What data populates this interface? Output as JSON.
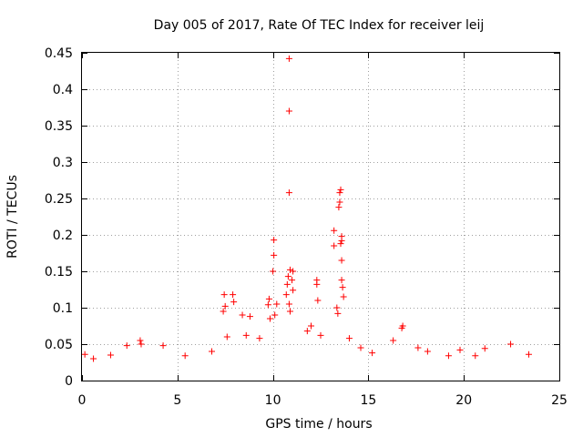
{
  "chart_data": {
    "type": "scatter",
    "title": "Day 005 of 2017, Rate Of TEC Index for receiver leij",
    "xlabel": "GPS time / hours",
    "ylabel": "ROTI / TECUs",
    "xlim": [
      0,
      25
    ],
    "ylim": [
      0,
      0.45
    ],
    "xticks": [
      0,
      5,
      10,
      15,
      20,
      25
    ],
    "xtick_labels": [
      "0",
      "5",
      "10",
      "15",
      "20",
      "25"
    ],
    "yticks": [
      0,
      0.05,
      0.1,
      0.15,
      0.2,
      0.25,
      0.3,
      0.35,
      0.4,
      0.45
    ],
    "ytick_labels": [
      "0",
      "0.05",
      "0.1",
      "0.15",
      "0.2",
      "0.25",
      "0.3",
      "0.35",
      "0.4",
      "0.45"
    ],
    "grid": true,
    "marker": "+",
    "color": "#ff0000",
    "series": [
      {
        "name": "ROTI",
        "points": [
          [
            10.85,
            0.442
          ],
          [
            10.85,
            0.37
          ],
          [
            10.85,
            0.258
          ],
          [
            13.55,
            0.262
          ],
          [
            13.5,
            0.258
          ],
          [
            13.5,
            0.245
          ],
          [
            13.45,
            0.238
          ],
          [
            13.2,
            0.206
          ],
          [
            13.6,
            0.198
          ],
          [
            13.6,
            0.192
          ],
          [
            13.55,
            0.188
          ],
          [
            13.2,
            0.185
          ],
          [
            10.05,
            0.193
          ],
          [
            10.05,
            0.172
          ],
          [
            13.6,
            0.165
          ],
          [
            10.0,
            0.15
          ],
          [
            10.9,
            0.152
          ],
          [
            11.05,
            0.15
          ],
          [
            10.8,
            0.143
          ],
          [
            11.0,
            0.138
          ],
          [
            12.3,
            0.138
          ],
          [
            12.3,
            0.132
          ],
          [
            13.6,
            0.138
          ],
          [
            13.65,
            0.128
          ],
          [
            10.75,
            0.132
          ],
          [
            11.05,
            0.124
          ],
          [
            10.7,
            0.118
          ],
          [
            7.45,
            0.118
          ],
          [
            7.9,
            0.118
          ],
          [
            9.8,
            0.112
          ],
          [
            12.35,
            0.11
          ],
          [
            13.7,
            0.115
          ],
          [
            10.2,
            0.105
          ],
          [
            9.75,
            0.104
          ],
          [
            7.5,
            0.102
          ],
          [
            7.95,
            0.108
          ],
          [
            10.85,
            0.105
          ],
          [
            13.35,
            0.1
          ],
          [
            7.4,
            0.095
          ],
          [
            8.4,
            0.09
          ],
          [
            8.8,
            0.088
          ],
          [
            13.4,
            0.092
          ],
          [
            10.1,
            0.09
          ],
          [
            10.9,
            0.095
          ],
          [
            9.85,
            0.085
          ],
          [
            16.8,
            0.075
          ],
          [
            16.75,
            0.072
          ],
          [
            12.0,
            0.075
          ],
          [
            11.8,
            0.068
          ],
          [
            12.5,
            0.062
          ],
          [
            8.6,
            0.062
          ],
          [
            7.6,
            0.06
          ],
          [
            9.3,
            0.058
          ],
          [
            14.0,
            0.058
          ],
          [
            16.3,
            0.055
          ],
          [
            3.05,
            0.055
          ],
          [
            3.1,
            0.05
          ],
          [
            2.35,
            0.048
          ],
          [
            4.25,
            0.048
          ],
          [
            22.45,
            0.05
          ],
          [
            21.1,
            0.044
          ],
          [
            19.8,
            0.042
          ],
          [
            1.5,
            0.035
          ],
          [
            5.4,
            0.034
          ],
          [
            6.8,
            0.04
          ],
          [
            18.1,
            0.04
          ],
          [
            17.6,
            0.045
          ],
          [
            23.4,
            0.036
          ],
          [
            0.15,
            0.036
          ],
          [
            0.6,
            0.03
          ],
          [
            15.2,
            0.038
          ],
          [
            14.6,
            0.045
          ],
          [
            19.2,
            0.034
          ],
          [
            20.6,
            0.034
          ]
        ]
      }
    ]
  }
}
